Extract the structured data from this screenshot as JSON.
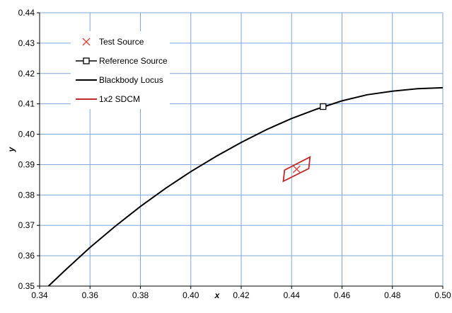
{
  "chart_data": {
    "type": "scatter",
    "xlabel": "x",
    "ylabel": "y",
    "xlim": [
      0.34,
      0.5
    ],
    "ylim": [
      0.35,
      0.44
    ],
    "x_ticks": [
      "0.34",
      "0.36",
      "0.38",
      "0.40",
      "0.42",
      "0.44",
      "0.46",
      "0.48",
      "0.50"
    ],
    "y_ticks": [
      "0.35",
      "0.36",
      "0.37",
      "0.38",
      "0.39",
      "0.40",
      "0.41",
      "0.42",
      "0.43",
      "0.44"
    ],
    "grid": true,
    "legend_position": "top-left",
    "series": [
      {
        "name": "Test Source",
        "kind": "marker-x",
        "color": "#e0403a",
        "points": [
          [
            0.442,
            0.3885
          ]
        ]
      },
      {
        "name": "Reference Source",
        "kind": "marker-square",
        "color": "#000000",
        "points": [
          [
            0.4525,
            0.4091
          ]
        ]
      },
      {
        "name": "Blackbody Locus",
        "kind": "line",
        "color": "#000000",
        "points": [
          [
            0.3435,
            0.35
          ],
          [
            0.35,
            0.3551
          ],
          [
            0.36,
            0.3627
          ],
          [
            0.37,
            0.3697
          ],
          [
            0.38,
            0.3762
          ],
          [
            0.39,
            0.3822
          ],
          [
            0.4,
            0.3877
          ],
          [
            0.41,
            0.3927
          ],
          [
            0.42,
            0.3973
          ],
          [
            0.43,
            0.4015
          ],
          [
            0.44,
            0.4052
          ],
          [
            0.45,
            0.4083
          ],
          [
            0.46,
            0.411
          ],
          [
            0.47,
            0.413
          ],
          [
            0.48,
            0.4142
          ],
          [
            0.49,
            0.415
          ],
          [
            0.5,
            0.4153
          ]
        ]
      },
      {
        "name": "1x2 SDCM",
        "kind": "polygon",
        "color": "#c0292a",
        "points": [
          [
            0.4367,
            0.3845
          ],
          [
            0.4468,
            0.3887
          ],
          [
            0.4473,
            0.3925
          ],
          [
            0.4372,
            0.3882
          ]
        ]
      }
    ]
  }
}
